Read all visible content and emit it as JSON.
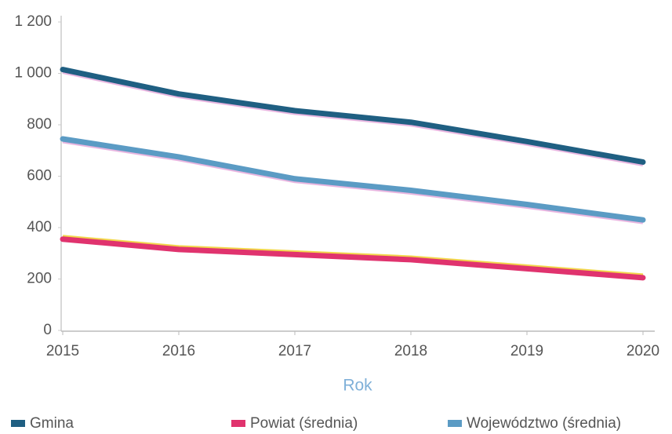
{
  "chart_data": {
    "type": "line",
    "x": [
      2015,
      2016,
      2017,
      2018,
      2019,
      2020
    ],
    "xlim": [
      2015,
      2020
    ],
    "xlabel": "Rok",
    "ylim": [
      0,
      1200
    ],
    "yticks": [
      0,
      200,
      400,
      600,
      800,
      {
        "value": 1000,
        "label": "1 000"
      },
      {
        "value": 1200,
        "label": "1 200"
      }
    ],
    "series": [
      {
        "name": "Gmina",
        "color": "#1f5f82",
        "values": [
          1015,
          920,
          855,
          810,
          735,
          655
        ]
      },
      {
        "name": "Powiat (średnia)",
        "color": "#e0336e",
        "values": [
          355,
          315,
          295,
          275,
          240,
          205
        ]
      },
      {
        "name": "Województwo (średnia)",
        "color": "#5b9bc4",
        "values": [
          745,
          675,
          590,
          545,
          490,
          430
        ]
      }
    ]
  }
}
